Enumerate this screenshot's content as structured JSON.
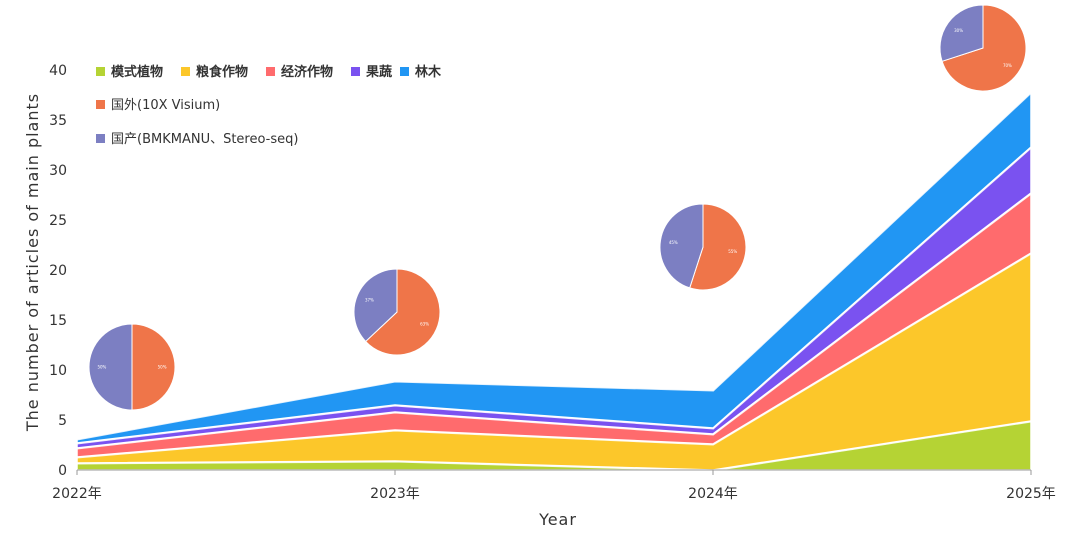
{
  "chart_data": {
    "type": "area",
    "stacked": true,
    "categories": [
      "2022年",
      "2023年",
      "2024年",
      "2025年"
    ],
    "xlabel": "Year",
    "ylabel": "The number of articles of main plants",
    "ylim": [
      0,
      40
    ],
    "yticks": [
      0,
      5,
      10,
      15,
      20,
      25,
      30,
      35,
      40
    ],
    "grid": false,
    "legend_position": "top-left",
    "series": [
      {
        "name": "模式植物",
        "color": "#B5D334",
        "values": [
          0.7,
          0.9,
          0,
          4.9
        ]
      },
      {
        "name": "粮食作物",
        "color": "#FCC72A",
        "values": [
          0.6,
          3.1,
          2.6,
          16.8
        ]
      },
      {
        "name": "经济作物",
        "color": "#FF6B6D",
        "values": [
          0.9,
          1.8,
          1.0,
          6.0
        ]
      },
      {
        "name": "果蔬",
        "color": "#7A52F0",
        "values": [
          0.5,
          0.7,
          0.6,
          4.6
        ]
      },
      {
        "name": "林木",
        "color": "#2196F3",
        "values": [
          0.4,
          2.4,
          3.8,
          5.5
        ]
      }
    ],
    "pie_legend": [
      {
        "name": "国外(10X  Visium)",
        "color": "#EF7549"
      },
      {
        "name": "国产(BMKMANU、Stereo-seq)",
        "color": "#7C7FC2"
      }
    ],
    "pies": [
      {
        "year": "2022年",
        "values": [
          50,
          50
        ],
        "labels": [
          "50%",
          "50%"
        ]
      },
      {
        "year": "2023年",
        "values": [
          63,
          37
        ],
        "labels": [
          "63%",
          "37%"
        ]
      },
      {
        "year": "2024年",
        "values": [
          55,
          45
        ],
        "labels": [
          "55%",
          "45%"
        ]
      },
      {
        "year": "2025年",
        "values": [
          70,
          30
        ],
        "labels": [
          "70%",
          "30%"
        ]
      }
    ]
  }
}
